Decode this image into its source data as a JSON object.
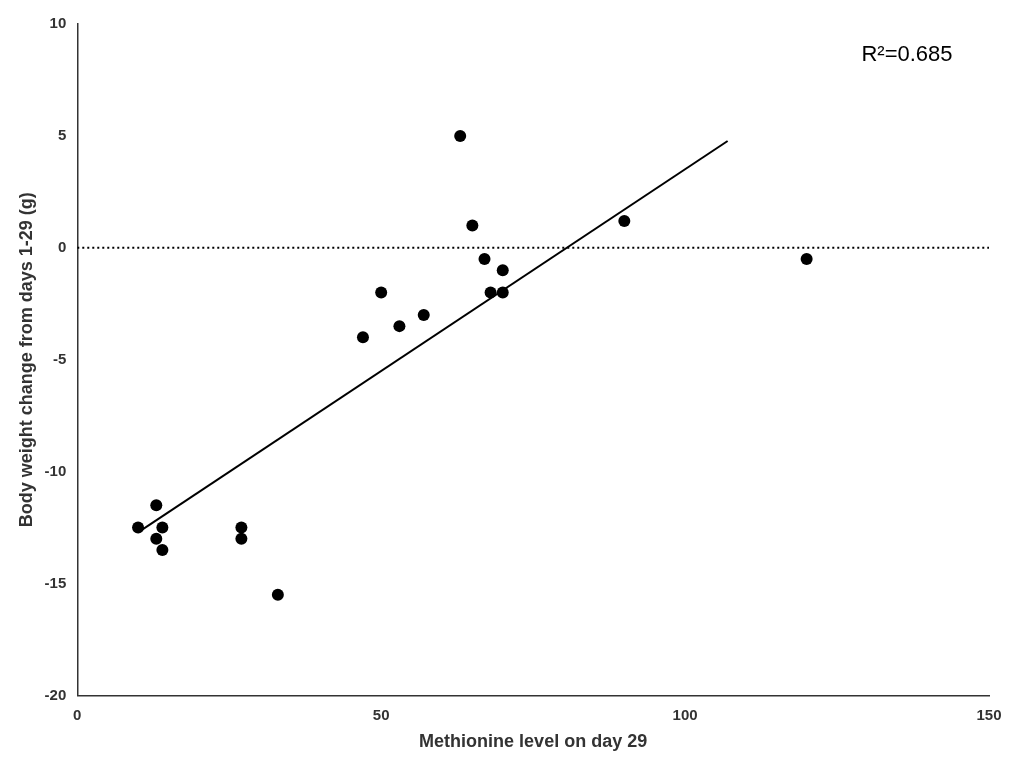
{
  "chart_data": {
    "type": "scatter",
    "xlabel": "Methionine level on day 29",
    "ylabel": "Body weight change from days 1-29 (g)",
    "xlim": [
      0,
      150
    ],
    "ylim": [
      -20,
      10
    ],
    "xticks": [
      0,
      50,
      100,
      150
    ],
    "yticks": [
      -20,
      -15,
      -10,
      -5,
      0,
      5,
      10
    ],
    "grid": false,
    "series": [
      {
        "type": "scatter",
        "color": "#000000",
        "x": [
          10,
          13,
          13,
          14,
          14,
          27,
          27,
          33,
          47,
          50,
          53,
          57,
          63,
          65,
          67,
          68,
          70,
          70,
          90,
          120
        ],
        "values": [
          -12.5,
          -11.5,
          -13,
          -12.5,
          -13.5,
          -13,
          -12.5,
          -15.5,
          -4,
          -2,
          -3.5,
          -3,
          5,
          1,
          -0.5,
          -2,
          -1,
          -2,
          1.2,
          -0.5
        ]
      },
      {
        "type": "line",
        "color": "#000000",
        "line_style": "solid",
        "x": [
          10,
          107
        ],
        "values": [
          -12.715,
          4.773
        ]
      }
    ],
    "hlines": [
      {
        "y": 0,
        "color": "#000000",
        "line_style": "dotted"
      }
    ],
    "annotations": [
      {
        "text": "R²=0.685"
      }
    ]
  }
}
